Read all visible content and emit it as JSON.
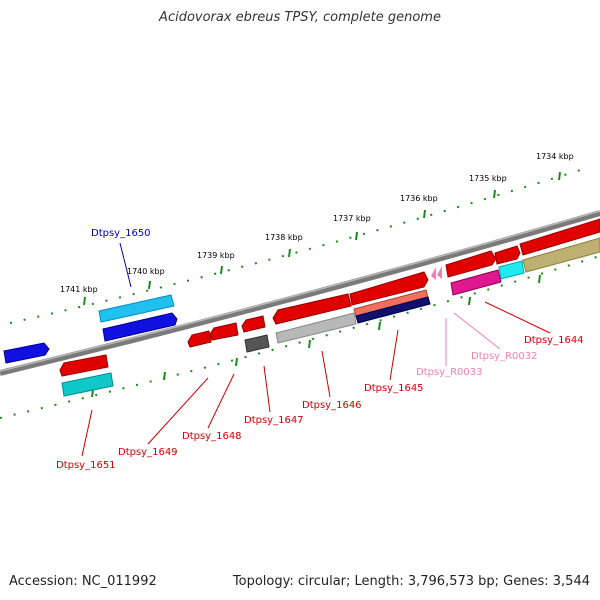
{
  "title": "Acidovorax ebreus TPSY, complete genome",
  "footer": {
    "accession": "Accession: NC_011992",
    "topology": "Topology: circular; Length: 3,796,573 bp; Genes: 3,544"
  },
  "scale_labels": [
    "1734 kbp",
    "1735 kbp",
    "1736 kbp",
    "1737 kbp",
    "1738 kbp",
    "1739 kbp",
    "1740 kbp",
    "1741 kbp"
  ],
  "genes": [
    {
      "label": "Dtpsy_1650",
      "strand": "top",
      "color": "#1010e0"
    },
    {
      "label": "Dtpsy_1651",
      "strand": "bottom",
      "color": "#e00000"
    },
    {
      "label": "Dtpsy_1649",
      "strand": "bottom",
      "color": "#e00000"
    },
    {
      "label": "Dtpsy_1648",
      "strand": "bottom",
      "color": "#e00000"
    },
    {
      "label": "Dtpsy_1647",
      "strand": "bottom",
      "color": "#e00000"
    },
    {
      "label": "Dtpsy_1646",
      "strand": "bottom",
      "color": "#e00000"
    },
    {
      "label": "Dtpsy_1645",
      "strand": "bottom",
      "color": "#e00000"
    },
    {
      "label": "Dtpsy_R0033",
      "strand": "bottom",
      "color": "#f080b0"
    },
    {
      "label": "Dtpsy_R0032",
      "strand": "bottom",
      "color": "#f080b0"
    },
    {
      "label": "Dtpsy_1644",
      "strand": "bottom",
      "color": "#e00000"
    }
  ],
  "colors": {
    "backbone": "#808080",
    "tick": "#1a8a1a",
    "label_red": "#d00000",
    "label_blue": "#0000c0",
    "label_pink": "#f080b0"
  }
}
